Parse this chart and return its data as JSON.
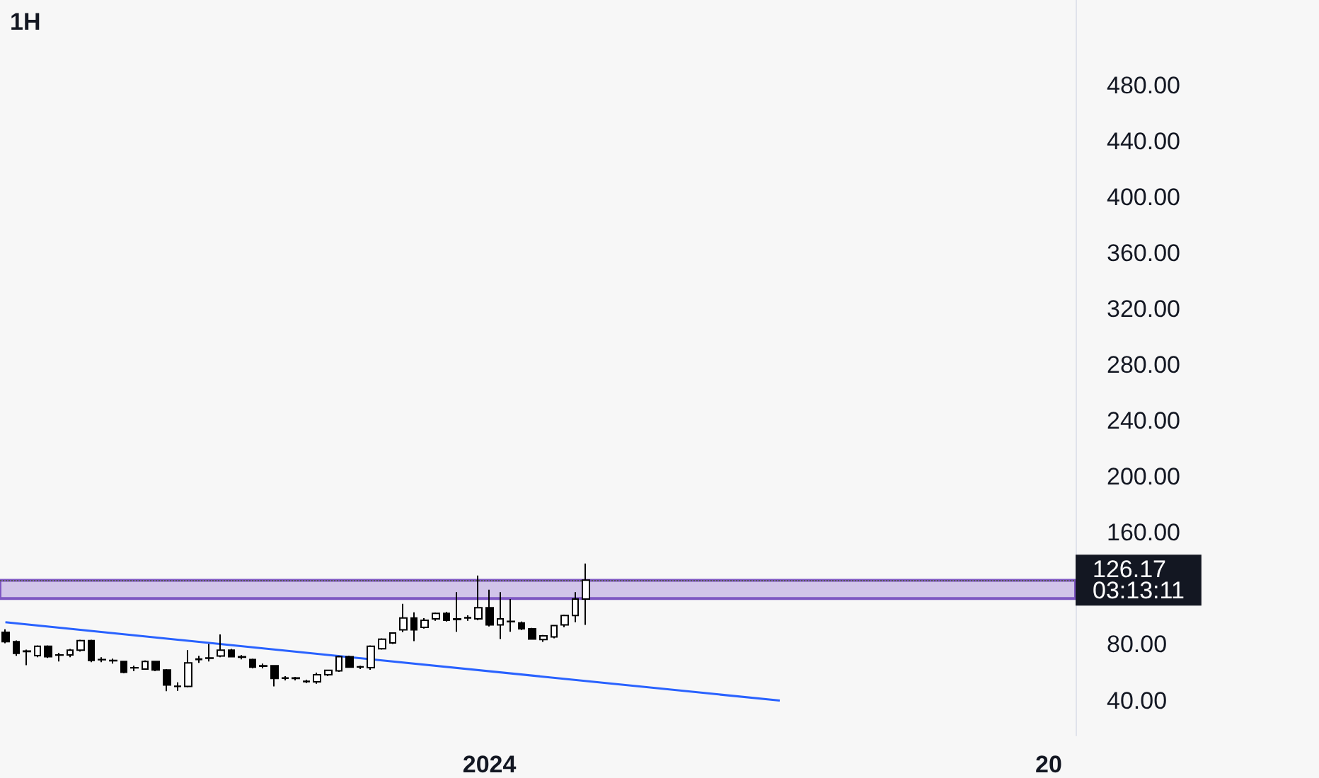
{
  "chart_data": {
    "type": "candlestick",
    "title": "1H",
    "categories": [
      null,
      null,
      null,
      null,
      null,
      null,
      null,
      null,
      null,
      null,
      null,
      null,
      null,
      null,
      null,
      null,
      null,
      null,
      null,
      null,
      null,
      null,
      null,
      null,
      null,
      null,
      null,
      null,
      null,
      null,
      null,
      null,
      null,
      null,
      null,
      null,
      null,
      null,
      null,
      null,
      null,
      null,
      null,
      null,
      null,
      "2024",
      null,
      null,
      null,
      null,
      null,
      null,
      null,
      null,
      null,
      null,
      null,
      null,
      null,
      null,
      null,
      null,
      null,
      null,
      null,
      null,
      null,
      null,
      null,
      null,
      null,
      null,
      null,
      null,
      null,
      null,
      null,
      null,
      null,
      null,
      null,
      null,
      null,
      null,
      null,
      null,
      null,
      null,
      null,
      null,
      null,
      null,
      null,
      null,
      null,
      null,
      null,
      "20",
      null,
      null
    ],
    "color": "#000000",
    "ohlc": [
      [
        88.9,
        91,
        81,
        82.2
      ],
      [
        82.2,
        83,
        72,
        73.8
      ],
      [
        75.4,
        76.5,
        65.3,
        75.0
      ],
      [
        72.1,
        79.5,
        71,
        78.8
      ],
      [
        78.8,
        79.5,
        70.5,
        71.4
      ],
      [
        72.7,
        74,
        68,
        72.5
      ],
      [
        72.7,
        77,
        71,
        76.1
      ],
      [
        76.1,
        83.5,
        75,
        82.9
      ],
      [
        82.9,
        83.5,
        67.5,
        68.7
      ],
      [
        69.4,
        71,
        67.5,
        69.2
      ],
      [
        68.7,
        70,
        66.5,
        68.5
      ],
      [
        68.0,
        68.5,
        59.5,
        60.3
      ],
      [
        63.6,
        65,
        61,
        63.4
      ],
      [
        62.6,
        68.7,
        62,
        68.0
      ],
      [
        68.0,
        68.5,
        61,
        61.9
      ],
      [
        61.9,
        62.5,
        46.8,
        51.1
      ],
      [
        50.1,
        53,
        47,
        50.3
      ],
      [
        50.1,
        76.1,
        49.5,
        67.0
      ],
      [
        69.4,
        72,
        67,
        69.7
      ],
      [
        70.5,
        80.5,
        68,
        70.2
      ],
      [
        71.9,
        87.3,
        71,
        76.1
      ],
      [
        76.1,
        77,
        71,
        71.4
      ],
      [
        71.4,
        72.5,
        69.5,
        71.0
      ],
      [
        69.4,
        70,
        63,
        63.9
      ],
      [
        64.9,
        66.5,
        63,
        64.6
      ],
      [
        64.9,
        65.5,
        50.1,
        55.9
      ],
      [
        56.2,
        57.5,
        54.5,
        56.0
      ],
      [
        56.2,
        57,
        54.5,
        55.9
      ],
      [
        53.8,
        55,
        52.5,
        53.6
      ],
      [
        53.5,
        60,
        52,
        58.5
      ],
      [
        58.5,
        62,
        57.5,
        61.6
      ],
      [
        61.3,
        72.1,
        60.5,
        71.4
      ],
      [
        71.4,
        72.1,
        63.5,
        63.9
      ],
      [
        64.2,
        65,
        62.5,
        64.0
      ],
      [
        63.6,
        79.5,
        62,
        78.8
      ],
      [
        77.1,
        84.5,
        76.5,
        83.9
      ],
      [
        81.2,
        88.9,
        80.5,
        88.3
      ],
      [
        90.6,
        109.2,
        89,
        99.1
      ],
      [
        99.1,
        103.1,
        82.5,
        90.6
      ],
      [
        92.4,
        99,
        91.5,
        97.4
      ],
      [
        98.4,
        103,
        97,
        102.4
      ],
      [
        102.4,
        103.5,
        96.5,
        97.4
      ],
      [
        98.4,
        117.6,
        89.2,
        98.0
      ],
      [
        99.4,
        101,
        97,
        99.1
      ],
      [
        98.4,
        129.4,
        97.5,
        106.4
      ],
      [
        106.4,
        119.3,
        93,
        94.1
      ],
      [
        94.1,
        117.6,
        84.0,
        98.4
      ],
      [
        96.4,
        112.6,
        89.2,
        96.7
      ],
      [
        95.5,
        96.5,
        90.5,
        91.4
      ],
      [
        91.4,
        92,
        83.6,
        84.0
      ],
      [
        83.6,
        87,
        82,
        86.3
      ],
      [
        85.6,
        94,
        84.5,
        93.7
      ],
      [
        94.1,
        101.5,
        92.5,
        100.8
      ],
      [
        100.8,
        117.6,
        96,
        112.6
      ],
      [
        112.6,
        138.0,
        94.1,
        126.17
      ],
      null,
      null,
      null,
      null,
      null,
      null,
      null,
      null,
      null,
      null,
      null,
      null,
      null,
      null,
      null,
      null,
      null,
      null,
      null,
      null,
      null,
      null,
      null,
      null,
      null,
      null,
      null,
      null,
      null,
      null,
      null,
      null,
      null,
      null,
      null,
      null,
      null,
      null,
      null,
      null,
      null,
      null,
      null,
      null,
      null
    ],
    "series": [
      {
        "type": "line",
        "color": "#2962ff",
        "values": [
          96,
          null,
          null,
          null,
          null,
          null,
          null,
          null,
          null,
          null,
          null,
          null,
          null,
          null,
          null,
          null,
          null,
          null,
          null,
          null,
          null,
          null,
          null,
          null,
          null,
          null,
          null,
          null,
          null,
          null,
          null,
          null,
          null,
          null,
          null,
          null,
          null,
          null,
          null,
          null,
          null,
          null,
          null,
          null,
          null,
          null,
          null,
          null,
          null,
          null,
          null,
          null,
          null,
          null,
          null,
          null,
          null,
          null,
          null,
          null,
          null,
          null,
          null,
          null,
          null,
          null,
          null,
          null,
          null,
          null,
          null,
          null,
          40,
          null,
          null,
          null,
          null,
          null,
          null,
          null,
          null,
          null,
          null,
          null,
          null,
          null,
          null,
          null,
          null,
          null,
          null,
          null,
          null,
          null,
          null,
          null,
          null,
          null,
          null,
          null
        ]
      }
    ],
    "marker": "none",
    "ylim": [
      15,
      541
    ],
    "yticks": [
      {
        "value": 40,
        "label": "40.00"
      },
      {
        "value": 80,
        "label": "80.00"
      },
      {
        "value": 160,
        "label": "160.00"
      },
      {
        "value": 200,
        "label": "200.00"
      },
      {
        "value": 240,
        "label": "240.00"
      },
      {
        "value": 280,
        "label": "280.00"
      },
      {
        "value": 320,
        "label": "320.00"
      },
      {
        "value": 360,
        "label": "360.00"
      },
      {
        "value": 400,
        "label": "400.00"
      },
      {
        "value": 440,
        "label": "440.00"
      },
      {
        "value": 480,
        "label": "480.00"
      }
    ],
    "bands": [
      {
        "axis": "y",
        "from": 113,
        "to": 126,
        "color": "#d1c4e9"
      }
    ],
    "ref_lines": [
      {
        "axis": "y",
        "value": 126.17,
        "label": "126.17",
        "color": "#555555",
        "line_style": "dotted"
      }
    ],
    "annotations": [
      "03:13:11"
    ],
    "grid": false
  }
}
